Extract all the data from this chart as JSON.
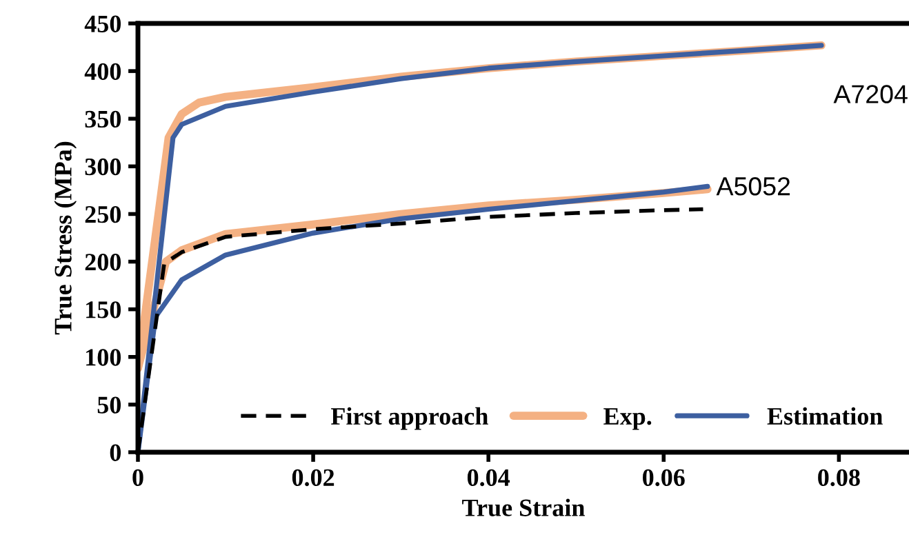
{
  "chart_data": {
    "type": "line",
    "xlabel": "True Strain",
    "ylabel": "True Stress (MPa)",
    "xlim": [
      0,
      0.088
    ],
    "ylim": [
      0,
      450
    ],
    "xticks": [
      0,
      0.02,
      0.04,
      0.06,
      0.08
    ],
    "yticks": [
      0,
      50,
      100,
      150,
      200,
      250,
      300,
      350,
      400,
      450
    ],
    "grid": false,
    "legend": "bottom",
    "marker": "none",
    "series": [
      {
        "name": "First approach",
        "color": "#000000",
        "line_style": "dashed",
        "x": [
          0,
          0.003,
          0.005,
          0.01,
          0.02,
          0.03,
          0.04,
          0.05,
          0.06,
          0.0645
        ],
        "values": [
          0,
          198,
          210,
          226,
          234,
          240,
          247,
          251,
          254,
          255
        ]
      },
      {
        "name": "Exp.",
        "color": "#f4b183",
        "line_style": "solid",
        "x": [
          0,
          0.0035,
          0.005,
          0.007,
          0.01,
          0.02,
          0.03,
          0.04,
          0.05,
          0.06,
          0.07,
          0.078
        ],
        "values": [
          88,
          330,
          355,
          367,
          373,
          383,
          394,
          403,
          410,
          416,
          422,
          427
        ]
      },
      {
        "color": "#f4b183",
        "line_style": "solid",
        "x": [
          0,
          0.0032,
          0.005,
          0.01,
          0.02,
          0.03,
          0.04,
          0.05,
          0.06,
          0.065
        ],
        "values": [
          88,
          200,
          212,
          229,
          239,
          250,
          259,
          265,
          272,
          276
        ]
      },
      {
        "name": "Estimation",
        "color": "#3d5fa0",
        "line_style": "solid",
        "x": [
          0,
          0.004,
          0.005,
          0.01,
          0.02,
          0.03,
          0.04,
          0.05,
          0.06,
          0.07,
          0.078
        ],
        "values": [
          0,
          330,
          344,
          363,
          378,
          392,
          403,
          410,
          416,
          422,
          427
        ]
      },
      {
        "color": "#3d5fa0",
        "line_style": "solid",
        "x": [
          0,
          0.002,
          0.005,
          0.01,
          0.02,
          0.03,
          0.04,
          0.05,
          0.06,
          0.065
        ],
        "values": [
          0,
          142,
          181,
          207,
          230,
          245,
          255,
          264,
          273,
          279
        ]
      }
    ],
    "annotations": [
      "A7204",
      "A5052"
    ]
  }
}
